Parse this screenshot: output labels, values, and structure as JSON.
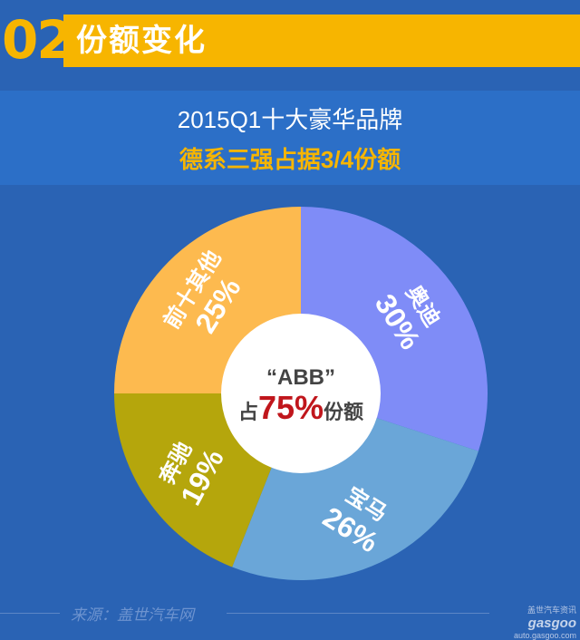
{
  "header": {
    "number": "02",
    "title": "份额变化"
  },
  "subtitle": "2015Q1十大豪华品牌",
  "highlight": "德系三强占据3/4份额",
  "center": {
    "line1": "“ABB”",
    "prefix": "占",
    "value": "75%",
    "suffix": "份额"
  },
  "chart_data": {
    "type": "pie",
    "title": "2015Q1十大豪华品牌",
    "subtitle": "德系三强占据3/4份额",
    "slices": [
      {
        "label": "奥迪",
        "value": 30,
        "display": "30%",
        "color": "#7f8cf7"
      },
      {
        "label": "宝马",
        "value": 26,
        "display": "26%",
        "color": "#6aa6d8"
      },
      {
        "label": "奔驰",
        "value": 19,
        "display": "19%",
        "color": "#b5a60c"
      },
      {
        "label": "前十其他",
        "value": 25,
        "display": "25%",
        "color": "#fdba4f"
      }
    ],
    "donut": true,
    "legend": "none"
  },
  "source": "来源：盖世汽车网",
  "watermark": {
    "line1": "盖世汽车资讯",
    "logo": "gasgoo",
    "url": "auto.gasgoo.com"
  }
}
